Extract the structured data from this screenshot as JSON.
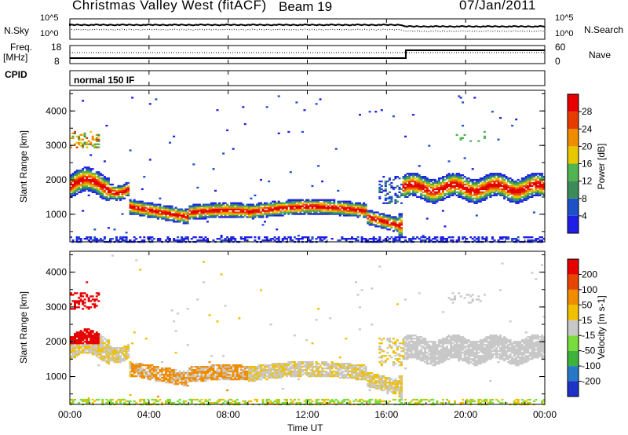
{
  "header": {
    "title": "Christmas Valley West (fitACF)",
    "beam": "Beam 19",
    "date": "07/Jan/2011"
  },
  "strip_panels": {
    "nsky_label": "N.Sky",
    "nsearch_label": "N.Search",
    "nsky_ticks": [
      "10^5",
      "10^0"
    ],
    "nsearch_ticks": [
      "10^5",
      "10^0"
    ],
    "freq_label": "Freq.",
    "freq_unit": "[MHz]",
    "freq_ticks": [
      "18",
      "8"
    ],
    "nave_label": "Nave",
    "nave_ticks": [
      "60",
      "0"
    ],
    "cpid_label": "CPID",
    "cpid_mode": "normal 150 IF"
  },
  "chart_data": [
    {
      "type": "heatmap",
      "name": "power",
      "ylabel": "Slant Range [km]",
      "yticks": [
        "1000",
        "2000",
        "3000",
        "4000"
      ],
      "ylim": [
        200,
        4600
      ],
      "colorbar_label": "Power [dB]",
      "colorbar_ticks": [
        "4",
        "8",
        "12",
        "16",
        "20",
        "24",
        "28"
      ],
      "colorbar_colors": [
        "#1e1ee6",
        "#1e50c8",
        "#3c8c5a",
        "#50b450",
        "#e6c800",
        "#f08c00",
        "#e63c00",
        "#e60000"
      ]
    },
    {
      "type": "heatmap",
      "name": "velocity",
      "ylabel": "Slant Range [km]",
      "yticks": [
        "1000",
        "2000",
        "3000",
        "4000"
      ],
      "ylim": [
        200,
        4600
      ],
      "colorbar_label": "Velocity [m s-1]",
      "colorbar_ticks": [
        "200",
        "100",
        "50",
        "15",
        "-15",
        "-50",
        "-100",
        "-200"
      ],
      "colorbar_colors": [
        "#1e32c8",
        "#2878c8",
        "#3cb43c",
        "#78dc3c",
        "#c8c8c8",
        "#f0c000",
        "#f08c00",
        "#e64600",
        "#e60000"
      ]
    }
  ],
  "xaxis": {
    "label": "Time UT",
    "ticks": [
      "00:00",
      "04:00",
      "08:00",
      "12:00",
      "16:00",
      "20:00",
      "00:00"
    ]
  }
}
